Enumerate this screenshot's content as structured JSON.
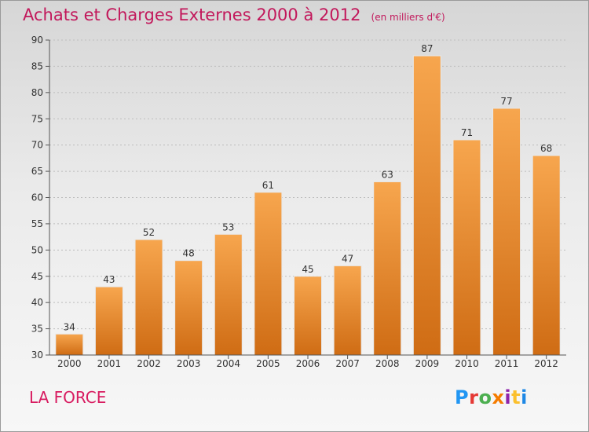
{
  "header": {
    "title": "Achats et Charges Externes 2000 à 2012",
    "subtitle": "(en milliers d'€)"
  },
  "footer": {
    "commune": "LA FORCE",
    "logo_text": "Proxiti",
    "logo_colors": [
      "#2196f3",
      "#e53935",
      "#4caf50",
      "#f57c00",
      "#8e24aa",
      "#fbc02d",
      "#1e88e5"
    ]
  },
  "colors": {
    "title": "#c2185b",
    "bar_top": "#f7a64e",
    "bar_bottom": "#cf6c14",
    "grid": "#bdbdbd"
  },
  "chart_data": {
    "type": "bar",
    "title": "Achats et Charges Externes 2000 à 2012",
    "subtitle": "(en milliers d'€)",
    "categories": [
      "2000",
      "2001",
      "2002",
      "2003",
      "2004",
      "2005",
      "2006",
      "2007",
      "2008",
      "2009",
      "2010",
      "2011",
      "2012"
    ],
    "values": [
      34,
      43,
      52,
      48,
      53,
      61,
      45,
      47,
      63,
      87,
      71,
      77,
      68
    ],
    "ylim": [
      30,
      90
    ],
    "yticks": [
      30,
      35,
      40,
      45,
      50,
      55,
      60,
      65,
      70,
      75,
      80,
      85,
      90
    ],
    "grid": true,
    "data_labels": true
  }
}
